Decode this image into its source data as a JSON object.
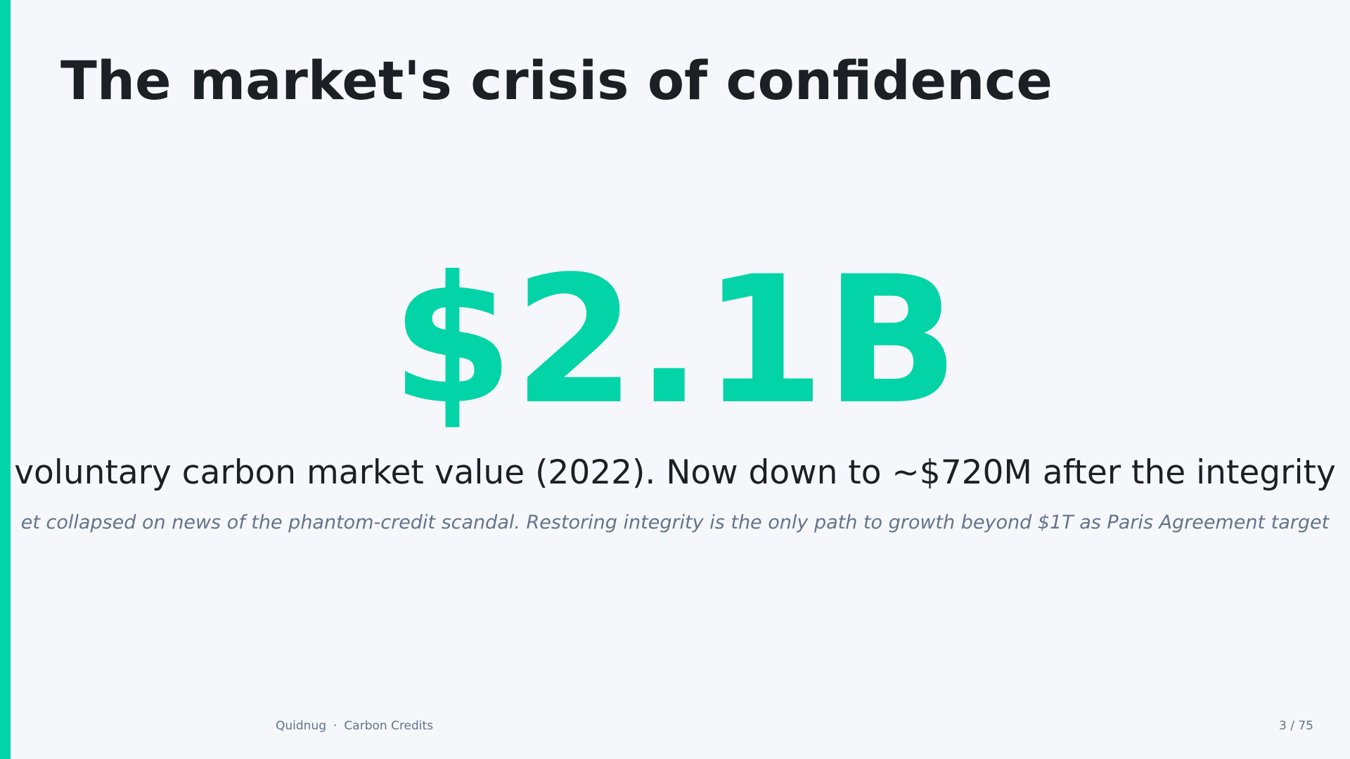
{
  "slide": {
    "title": "The market's crisis of confidence",
    "stat": "$2.1B",
    "caption": "voluntary carbon market value (2022). Now down to ~$720M after the integrity",
    "note": "et collapsed on news of the phantom-credit scandal. Restoring integrity is the only path to growth beyond $1T as Paris Agreement target",
    "footer": {
      "brand": "Quidnug",
      "separator": "·",
      "section": "Carbon Credits",
      "page": "3 / 75"
    }
  }
}
